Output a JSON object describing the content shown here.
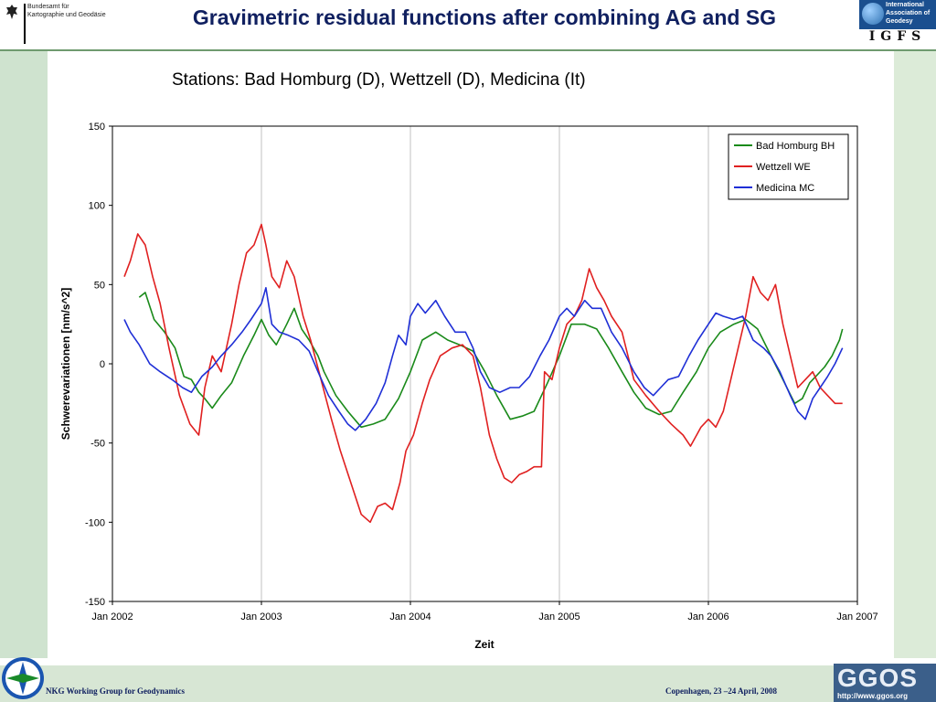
{
  "header": {
    "title": "Gravimetric residual functions after combining AG and SG",
    "bkg_logo_text": "Bundesamt für\nKartographie und Geodäsie",
    "igfs_org_text": "International\nAssociation of\nGeodesy",
    "igfs_letters": "IGFS"
  },
  "footer": {
    "left": "NKG Working Group for Geodynamics",
    "right": "Copenhagen, 23 –24 April, 2008",
    "ggos_word": "GGOS",
    "ggos_url": "http://www.ggos.org"
  },
  "colors": {
    "green": "#1a8a1a",
    "red": "#e02020",
    "blue": "#1f2fd6",
    "title": "#102060"
  },
  "chart_data": {
    "type": "line",
    "subtitle": "Stations: Bad Homburg (D), Wettzell (D), Medicina (It)",
    "xlabel": "Zeit",
    "ylabel": "Schwerevariationen [nm/s^2]",
    "ylim": [
      -150,
      150
    ],
    "yticks": [
      150,
      100,
      50,
      0,
      -50,
      -100,
      -150
    ],
    "xlim": [
      2002.0,
      2007.0
    ],
    "xticks": [
      {
        "value": 2002.0,
        "label": "Jan 2002"
      },
      {
        "value": 2003.0,
        "label": "Jan 2003"
      },
      {
        "value": 2004.0,
        "label": "Jan 2004"
      },
      {
        "value": 2005.0,
        "label": "Jan 2005"
      },
      {
        "value": 2006.0,
        "label": "Jan 2006"
      },
      {
        "value": 2007.0,
        "label": "Jan 2007"
      }
    ],
    "grid": true,
    "legend_position": "top-right",
    "series": [
      {
        "name": "Bad Homburg BH",
        "color": "#1a8a1a",
        "points": [
          [
            2002.18,
            42
          ],
          [
            2002.22,
            45
          ],
          [
            2002.28,
            28
          ],
          [
            2002.35,
            20
          ],
          [
            2002.42,
            10
          ],
          [
            2002.48,
            -8
          ],
          [
            2002.53,
            -10
          ],
          [
            2002.58,
            -18
          ],
          [
            2002.62,
            -22
          ],
          [
            2002.67,
            -28
          ],
          [
            2002.73,
            -20
          ],
          [
            2002.8,
            -12
          ],
          [
            2002.88,
            5
          ],
          [
            2002.95,
            18
          ],
          [
            2003.0,
            28
          ],
          [
            2003.05,
            18
          ],
          [
            2003.1,
            12
          ],
          [
            2003.17,
            25
          ],
          [
            2003.22,
            35
          ],
          [
            2003.27,
            22
          ],
          [
            2003.32,
            15
          ],
          [
            2003.38,
            5
          ],
          [
            2003.42,
            -5
          ],
          [
            2003.5,
            -20
          ],
          [
            2003.58,
            -30
          ],
          [
            2003.67,
            -40
          ],
          [
            2003.75,
            -38
          ],
          [
            2003.83,
            -35
          ],
          [
            2003.92,
            -22
          ],
          [
            2004.0,
            -5
          ],
          [
            2004.08,
            15
          ],
          [
            2004.17,
            20
          ],
          [
            2004.25,
            15
          ],
          [
            2004.33,
            12
          ],
          [
            2004.42,
            8
          ],
          [
            2004.5,
            -5
          ],
          [
            2004.58,
            -20
          ],
          [
            2004.67,
            -35
          ],
          [
            2004.75,
            -33
          ],
          [
            2004.83,
            -30
          ],
          [
            2004.92,
            -12
          ],
          [
            2005.0,
            5
          ],
          [
            2005.08,
            25
          ],
          [
            2005.17,
            25
          ],
          [
            2005.25,
            22
          ],
          [
            2005.33,
            10
          ],
          [
            2005.42,
            -5
          ],
          [
            2005.5,
            -18
          ],
          [
            2005.58,
            -28
          ],
          [
            2005.67,
            -32
          ],
          [
            2005.75,
            -30
          ],
          [
            2005.83,
            -18
          ],
          [
            2005.92,
            -5
          ],
          [
            2006.0,
            10
          ],
          [
            2006.08,
            20
          ],
          [
            2006.17,
            25
          ],
          [
            2006.25,
            28
          ],
          [
            2006.33,
            22
          ],
          [
            2006.42,
            5
          ],
          [
            2006.5,
            -10
          ],
          [
            2006.58,
            -25
          ],
          [
            2006.63,
            -22
          ],
          [
            2006.68,
            -12
          ],
          [
            2006.72,
            -8
          ],
          [
            2006.78,
            -2
          ],
          [
            2006.83,
            5
          ],
          [
            2006.88,
            15
          ],
          [
            2006.9,
            22
          ]
        ]
      },
      {
        "name": "Wettzell WE",
        "color": "#e02020",
        "points": [
          [
            2002.08,
            55
          ],
          [
            2002.12,
            65
          ],
          [
            2002.17,
            82
          ],
          [
            2002.22,
            75
          ],
          [
            2002.27,
            55
          ],
          [
            2002.32,
            38
          ],
          [
            2002.38,
            10
          ],
          [
            2002.45,
            -20
          ],
          [
            2002.52,
            -38
          ],
          [
            2002.58,
            -45
          ],
          [
            2002.62,
            -15
          ],
          [
            2002.67,
            5
          ],
          [
            2002.73,
            -5
          ],
          [
            2002.8,
            25
          ],
          [
            2002.85,
            50
          ],
          [
            2002.9,
            70
          ],
          [
            2002.95,
            75
          ],
          [
            2003.0,
            88
          ],
          [
            2003.03,
            75
          ],
          [
            2003.07,
            55
          ],
          [
            2003.12,
            48
          ],
          [
            2003.17,
            65
          ],
          [
            2003.22,
            55
          ],
          [
            2003.28,
            30
          ],
          [
            2003.33,
            15
          ],
          [
            2003.4,
            -10
          ],
          [
            2003.47,
            -35
          ],
          [
            2003.53,
            -55
          ],
          [
            2003.6,
            -75
          ],
          [
            2003.67,
            -95
          ],
          [
            2003.73,
            -100
          ],
          [
            2003.78,
            -90
          ],
          [
            2003.83,
            -88
          ],
          [
            2003.88,
            -92
          ],
          [
            2003.93,
            -75
          ],
          [
            2003.97,
            -55
          ],
          [
            2004.02,
            -45
          ],
          [
            2004.08,
            -25
          ],
          [
            2004.13,
            -10
          ],
          [
            2004.2,
            5
          ],
          [
            2004.28,
            10
          ],
          [
            2004.35,
            12
          ],
          [
            2004.42,
            5
          ],
          [
            2004.47,
            -15
          ],
          [
            2004.53,
            -45
          ],
          [
            2004.58,
            -60
          ],
          [
            2004.63,
            -72
          ],
          [
            2004.68,
            -75
          ],
          [
            2004.73,
            -70
          ],
          [
            2004.78,
            -68
          ],
          [
            2004.83,
            -65
          ],
          [
            2004.88,
            -65
          ],
          [
            2004.9,
            -5
          ],
          [
            2004.95,
            -10
          ],
          [
            2005.0,
            10
          ],
          [
            2005.05,
            25
          ],
          [
            2005.1,
            30
          ],
          [
            2005.15,
            40
          ],
          [
            2005.2,
            60
          ],
          [
            2005.25,
            48
          ],
          [
            2005.3,
            40
          ],
          [
            2005.35,
            30
          ],
          [
            2005.42,
            20
          ],
          [
            2005.5,
            -10
          ],
          [
            2005.58,
            -20
          ],
          [
            2005.67,
            -30
          ],
          [
            2005.75,
            -38
          ],
          [
            2005.83,
            -45
          ],
          [
            2005.88,
            -52
          ],
          [
            2005.95,
            -40
          ],
          [
            2006.0,
            -35
          ],
          [
            2006.05,
            -40
          ],
          [
            2006.1,
            -30
          ],
          [
            2006.15,
            -10
          ],
          [
            2006.2,
            10
          ],
          [
            2006.25,
            30
          ],
          [
            2006.3,
            55
          ],
          [
            2006.35,
            45
          ],
          [
            2006.4,
            40
          ],
          [
            2006.45,
            50
          ],
          [
            2006.5,
            25
          ],
          [
            2006.55,
            5
          ],
          [
            2006.6,
            -15
          ],
          [
            2006.65,
            -10
          ],
          [
            2006.7,
            -5
          ],
          [
            2006.75,
            -15
          ],
          [
            2006.8,
            -20
          ],
          [
            2006.85,
            -25
          ],
          [
            2006.9,
            -25
          ]
        ]
      },
      {
        "name": "Medicina MC",
        "color": "#1f2fd6",
        "points": [
          [
            2002.08,
            28
          ],
          [
            2002.12,
            20
          ],
          [
            2002.18,
            12
          ],
          [
            2002.25,
            0
          ],
          [
            2002.32,
            -5
          ],
          [
            2002.4,
            -10
          ],
          [
            2002.47,
            -15
          ],
          [
            2002.53,
            -18
          ],
          [
            2002.6,
            -8
          ],
          [
            2002.67,
            -2
          ],
          [
            2002.73,
            5
          ],
          [
            2002.8,
            12
          ],
          [
            2002.87,
            20
          ],
          [
            2002.93,
            28
          ],
          [
            2003.0,
            38
          ],
          [
            2003.03,
            48
          ],
          [
            2003.07,
            25
          ],
          [
            2003.12,
            20
          ],
          [
            2003.18,
            18
          ],
          [
            2003.25,
            15
          ],
          [
            2003.32,
            8
          ],
          [
            2003.38,
            -5
          ],
          [
            2003.45,
            -20
          ],
          [
            2003.52,
            -30
          ],
          [
            2003.58,
            -38
          ],
          [
            2003.63,
            -42
          ],
          [
            2003.7,
            -35
          ],
          [
            2003.77,
            -25
          ],
          [
            2003.83,
            -12
          ],
          [
            2003.88,
            5
          ],
          [
            2003.92,
            18
          ],
          [
            2003.97,
            12
          ],
          [
            2004.0,
            30
          ],
          [
            2004.05,
            38
          ],
          [
            2004.1,
            32
          ],
          [
            2004.17,
            40
          ],
          [
            2004.23,
            30
          ],
          [
            2004.3,
            20
          ],
          [
            2004.37,
            20
          ],
          [
            2004.42,
            10
          ],
          [
            2004.47,
            -5
          ],
          [
            2004.53,
            -15
          ],
          [
            2004.6,
            -18
          ],
          [
            2004.67,
            -15
          ],
          [
            2004.73,
            -15
          ],
          [
            2004.8,
            -8
          ],
          [
            2004.87,
            5
          ],
          [
            2004.93,
            15
          ],
          [
            2005.0,
            30
          ],
          [
            2005.05,
            35
          ],
          [
            2005.1,
            30
          ],
          [
            2005.17,
            40
          ],
          [
            2005.22,
            35
          ],
          [
            2005.28,
            35
          ],
          [
            2005.35,
            20
          ],
          [
            2005.42,
            10
          ],
          [
            2005.5,
            -5
          ],
          [
            2005.57,
            -15
          ],
          [
            2005.63,
            -20
          ],
          [
            2005.68,
            -15
          ],
          [
            2005.73,
            -10
          ],
          [
            2005.8,
            -8
          ],
          [
            2005.87,
            5
          ],
          [
            2005.93,
            15
          ],
          [
            2006.0,
            25
          ],
          [
            2006.05,
            32
          ],
          [
            2006.1,
            30
          ],
          [
            2006.17,
            28
          ],
          [
            2006.23,
            30
          ],
          [
            2006.3,
            15
          ],
          [
            2006.37,
            10
          ],
          [
            2006.42,
            5
          ],
          [
            2006.48,
            -5
          ],
          [
            2006.55,
            -20
          ],
          [
            2006.6,
            -30
          ],
          [
            2006.65,
            -35
          ],
          [
            2006.7,
            -22
          ],
          [
            2006.75,
            -15
          ],
          [
            2006.8,
            -8
          ],
          [
            2006.85,
            0
          ],
          [
            2006.9,
            10
          ]
        ]
      }
    ]
  }
}
